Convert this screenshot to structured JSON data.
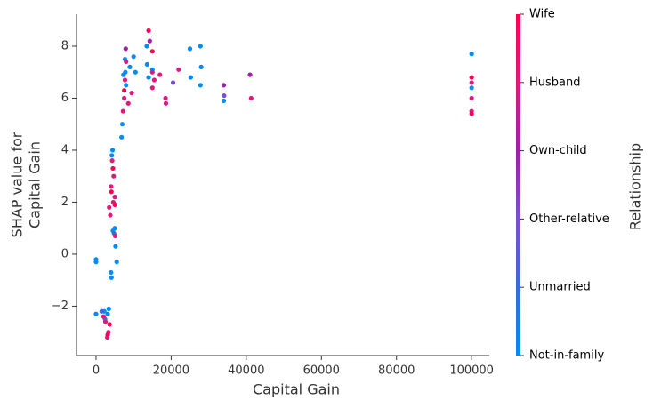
{
  "chart_data": {
    "type": "scatter",
    "x_label": "Capital Gain",
    "y_label": [
      "SHAP value for",
      "Capital Gain"
    ],
    "colorbar_label": "Relationship",
    "xlim": [
      -5200,
      104700
    ],
    "ylim": [
      -3.9,
      9.23
    ],
    "xticks": [
      0,
      20000,
      40000,
      60000,
      80000,
      100000
    ],
    "yticks": [
      {
        "value": -2,
        "label": "−2"
      },
      0,
      2,
      4,
      6,
      8
    ],
    "series": [
      {
        "name": "Not-in-family",
        "color": "#008bfb",
        "x": [
          0,
          0,
          0,
          2200,
          2400,
          3100,
          3400,
          4000,
          4100,
          4200,
          4400,
          4500,
          5000,
          5200,
          5500,
          6800,
          7000,
          7300,
          7700,
          7800,
          8000,
          9000,
          10000,
          10500,
          13500,
          13600,
          14000,
          15000,
          25000,
          25200,
          27800,
          28000,
          27800,
          34000,
          99999,
          99999
        ],
        "values": [
          -0.2,
          -0.3,
          -2.3,
          -2.2,
          -2.5,
          -2.3,
          -2.1,
          -0.7,
          -0.9,
          3.8,
          4.0,
          0.9,
          1.0,
          0.3,
          -0.3,
          4.5,
          5.0,
          6.9,
          7.5,
          7.0,
          6.5,
          7.2,
          7.6,
          7.0,
          8.0,
          7.3,
          6.8,
          7.1,
          7.9,
          6.8,
          8.0,
          7.2,
          6.5,
          5.9,
          7.7,
          6.4
        ]
      },
      {
        "name": "Unmarried",
        "color": "#3a6ad8",
        "x": [
          1500,
          4800
        ],
        "values": [
          -2.2,
          0.8
        ]
      },
      {
        "name": "Other-relative",
        "color": "#7b4ed1",
        "x": [
          34100,
          20500
        ],
        "values": [
          6.1,
          6.6
        ]
      },
      {
        "name": "Own-child",
        "color": "#a020a8",
        "x": [
          7900,
          14300,
          34000,
          41000
        ],
        "values": [
          7.9,
          8.2,
          6.5,
          6.9
        ]
      },
      {
        "name": "Husband",
        "color": "#dc1a7d",
        "x": [
          2000,
          2500,
          3000,
          3300,
          3500,
          3800,
          4000,
          4300,
          4600,
          4700,
          5000,
          5100,
          7200,
          7500,
          7700,
          8000,
          8600,
          9500,
          15000,
          15000,
          15500,
          17000,
          18500,
          18600,
          22000,
          41300,
          99999,
          99999,
          99999
        ],
        "values": [
          -2.4,
          -2.6,
          -3.2,
          -3.0,
          1.8,
          1.5,
          2.6,
          3.6,
          2.0,
          3.0,
          2.2,
          0.7,
          5.5,
          6.0,
          6.7,
          7.4,
          5.8,
          6.2,
          6.4,
          7.0,
          6.7,
          6.9,
          6.0,
          5.8,
          7.1,
          6.0,
          5.5,
          6.0,
          6.6
        ]
      },
      {
        "name": "Wife",
        "color": "#ff0052",
        "x": [
          3100,
          3600,
          4100,
          4500,
          5000,
          7500,
          14000,
          15000,
          99999,
          99999
        ],
        "values": [
          -3.1,
          -2.7,
          2.4,
          3.3,
          1.9,
          6.3,
          8.6,
          7.8,
          5.4,
          6.8
        ]
      }
    ]
  }
}
